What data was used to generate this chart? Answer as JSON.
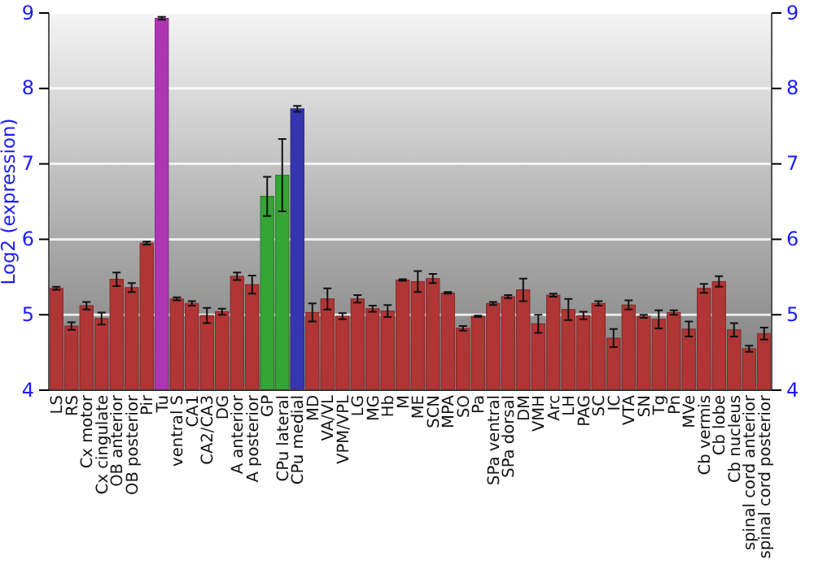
{
  "chart_data": {
    "type": "bar",
    "ylabel": "Log2 (expression)",
    "categories": [
      "LS",
      "RS",
      "Cx motor",
      "Cx cingulate",
      "OB anterior",
      "OB posterior",
      "Pir",
      "Tu",
      "ventral S",
      "CA1",
      "CA2/CA3",
      "DG",
      "A anterior",
      "A posterior",
      "GP",
      "CPu lateral",
      "CPu medial",
      "MD",
      "VA/VL",
      "VPM/VPL",
      "LG",
      "MG",
      "Hb",
      "M",
      "ME",
      "SCN",
      "MPA",
      "SO",
      "Pa",
      "SPa ventral",
      "SPa dorsal",
      "DM",
      "VMH",
      "Arc",
      "LH",
      "PAG",
      "SC",
      "IC",
      "VTA",
      "SN",
      "Tg",
      "Pn",
      "MVe",
      "Cb vermis",
      "Cb lobe",
      "Cb nucleus",
      "spinal cord anterior",
      "spinal cord posterior"
    ],
    "values": [
      5.35,
      4.85,
      5.12,
      4.95,
      5.47,
      5.36,
      5.95,
      8.93,
      5.21,
      5.15,
      4.99,
      5.04,
      5.51,
      5.4,
      6.57,
      6.85,
      7.73,
      5.03,
      5.21,
      4.98,
      5.21,
      5.08,
      5.05,
      5.46,
      5.44,
      5.48,
      5.29,
      4.82,
      4.98,
      5.15,
      5.24,
      5.33,
      4.88,
      5.26,
      5.07,
      4.99,
      5.15,
      4.69,
      5.13,
      4.98,
      4.94,
      5.03,
      4.81,
      5.35,
      5.44,
      4.8,
      4.55,
      4.75
    ],
    "errors": [
      0.02,
      0.05,
      0.05,
      0.08,
      0.09,
      0.06,
      0.02,
      0.02,
      0.02,
      0.03,
      0.1,
      0.04,
      0.05,
      0.12,
      0.26,
      0.48,
      0.04,
      0.12,
      0.14,
      0.04,
      0.05,
      0.04,
      0.08,
      0.01,
      0.14,
      0.06,
      0.01,
      0.03,
      0.01,
      0.02,
      0.02,
      0.15,
      0.12,
      0.02,
      0.14,
      0.05,
      0.03,
      0.12,
      0.06,
      0.02,
      0.12,
      0.03,
      0.1,
      0.06,
      0.07,
      0.09,
      0.04,
      0.08
    ],
    "colors": [
      "#b03535",
      "#b03535",
      "#b03535",
      "#b03535",
      "#b03535",
      "#b03535",
      "#b03535",
      "#b035b5",
      "#b03535",
      "#b03535",
      "#b03535",
      "#b03535",
      "#b03535",
      "#b03535",
      "#35a535",
      "#35a535",
      "#3535b0",
      "#b03535",
      "#b03535",
      "#b03535",
      "#b03535",
      "#b03535",
      "#b03535",
      "#b03535",
      "#b03535",
      "#b03535",
      "#b03535",
      "#b03535",
      "#b03535",
      "#b03535",
      "#b03535",
      "#b03535",
      "#b03535",
      "#b03535",
      "#b03535",
      "#b03535",
      "#b03535",
      "#b03535",
      "#b03535",
      "#b03535",
      "#b03535",
      "#b03535",
      "#b03535",
      "#b03535",
      "#b03535",
      "#b03535",
      "#b03535",
      "#b03535"
    ],
    "ylim": [
      4,
      9
    ],
    "yticks": [
      4,
      5,
      6,
      7,
      8,
      9
    ],
    "y2lim": [
      4,
      9
    ],
    "y2ticks": [
      4,
      5,
      6,
      7,
      8,
      9
    ],
    "grid": "y"
  }
}
